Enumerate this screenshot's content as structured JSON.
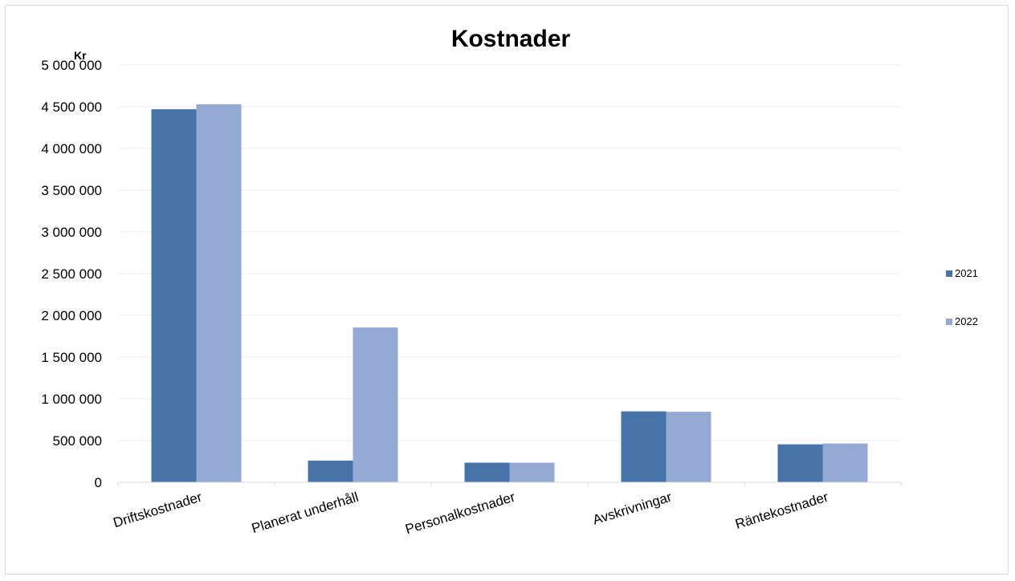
{
  "chart_data": {
    "type": "bar",
    "title": "Kostnader",
    "ylabel": "Kr",
    "xlabel": "",
    "categories": [
      "Driftskostnader",
      "Planerat underhåll",
      "Personalkostnader",
      "Avskrivningar",
      "Räntekostnader"
    ],
    "series": [
      {
        "name": "2021",
        "color": "#4674a8",
        "values": [
          4470000,
          260000,
          235000,
          850000,
          455000
        ]
      },
      {
        "name": "2022",
        "color": "#95aad2",
        "values": [
          4530000,
          1855000,
          235000,
          845000,
          465000
        ]
      }
    ],
    "ylim": [
      0,
      5000000
    ],
    "yticks": [
      "0",
      "500 000",
      "1 000 000",
      "1 500 000",
      "2 000 000",
      "2 500 000",
      "3 000 000",
      "3 500 000",
      "4 000 000",
      "4 500 000",
      "5 000 000"
    ],
    "ytick_step": 500000,
    "grid": true,
    "legend_position": "right"
  }
}
